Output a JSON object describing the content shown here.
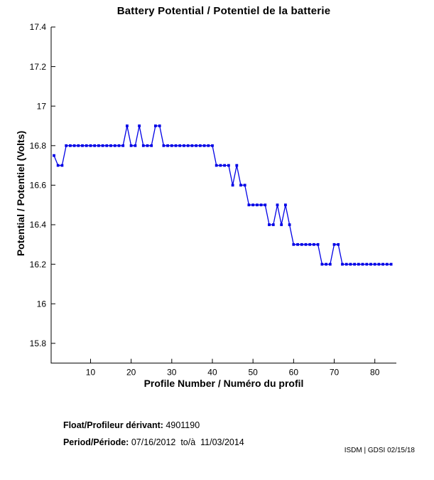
{
  "page": {
    "background": "#ffffff",
    "accent_color": "#0000e6"
  },
  "chart_data": {
    "type": "line",
    "title": "Battery Potential / Potentiel de la batterie",
    "xlabel": "Profile Number / Numéro du profil",
    "ylabel": "Potential / Potentiel (Volts)",
    "grid": false,
    "legend": "none",
    "xlim": [
      0.3,
      85.3
    ],
    "ylim": [
      15.7,
      17.4
    ],
    "xticks": [
      10,
      20,
      30,
      40,
      50,
      60,
      70,
      80
    ],
    "xtick_labels": [
      "10",
      "20",
      "30",
      "40",
      "50",
      "60",
      "70",
      "80"
    ],
    "yticks": [
      15.8,
      16,
      16.2,
      16.4,
      16.6,
      16.8,
      17,
      17.2,
      17.4
    ],
    "ytick_labels": [
      "15.8",
      "16",
      "16.2",
      "16.4",
      "16.6",
      "16.8",
      "17",
      "17.2",
      "17.4"
    ],
    "series": [
      {
        "name": "battery-potential",
        "color": "#0000e6",
        "marker": "square",
        "x_start": 1,
        "values": [
          16.75,
          16.7,
          16.7,
          16.8,
          16.8,
          16.8,
          16.8,
          16.8,
          16.8,
          16.8,
          16.8,
          16.8,
          16.8,
          16.8,
          16.8,
          16.8,
          16.8,
          16.8,
          16.9,
          16.8,
          16.8,
          16.9,
          16.8,
          16.8,
          16.8,
          16.9,
          16.9,
          16.8,
          16.8,
          16.8,
          16.8,
          16.8,
          16.8,
          16.8,
          16.8,
          16.8,
          16.8,
          16.8,
          16.8,
          16.8,
          16.7,
          16.7,
          16.7,
          16.7,
          16.6,
          16.7,
          16.6,
          16.6,
          16.5,
          16.5,
          16.5,
          16.5,
          16.5,
          16.4,
          16.4,
          16.5,
          16.4,
          16.5,
          16.4,
          16.3,
          16.3,
          16.3,
          16.3,
          16.3,
          16.3,
          16.3,
          16.2,
          16.2,
          16.2,
          16.3,
          16.3,
          16.2,
          16.2,
          16.2,
          16.2,
          16.2,
          16.2,
          16.2,
          16.2,
          16.2,
          16.2,
          16.2,
          16.2,
          16.2
        ]
      }
    ]
  },
  "footer": {
    "float_label": "Float/Profileur dérivant:",
    "float_value": " 4901190",
    "period_label": "Period/Période:",
    "period_value": " 07/16/2012  to/à  11/03/2014",
    "credit": "ISDM | GDSI 02/15/18"
  }
}
